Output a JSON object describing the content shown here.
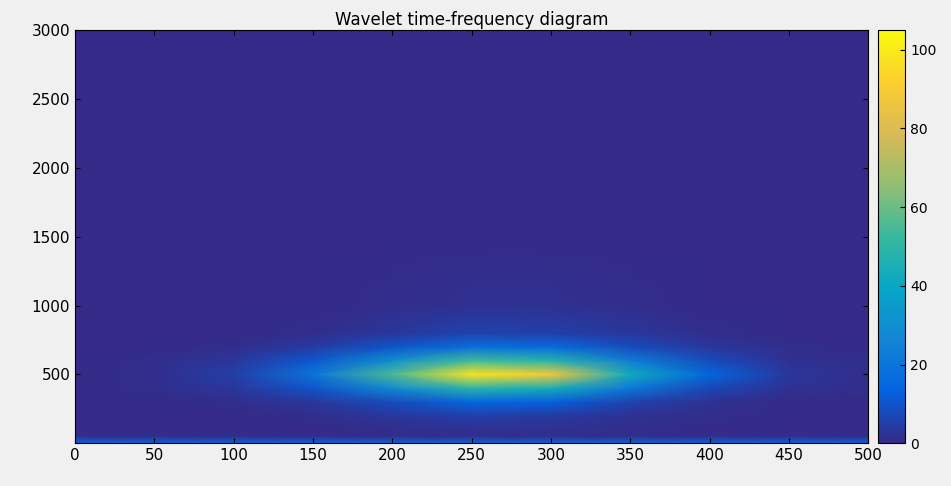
{
  "chart_data": {
    "type": "heatmap",
    "title": "Wavelet time-frequency diagram",
    "x": [
      0,
      50,
      100,
      150,
      200,
      250,
      300,
      350,
      400,
      450,
      500
    ],
    "y": [
      0,
      50,
      100,
      200,
      300,
      400,
      500,
      600,
      700,
      800,
      1000,
      1500,
      2000,
      2500,
      3000
    ],
    "cells": [
      [
        15,
        15,
        15,
        15,
        15,
        15,
        15,
        15,
        15,
        15,
        15
      ],
      [
        1,
        1,
        1,
        1,
        1,
        1,
        1,
        1,
        1,
        1,
        1
      ],
      [
        0,
        0,
        0,
        0,
        1,
        2,
        2,
        1,
        0,
        0,
        0
      ],
      [
        0,
        0,
        0,
        1,
        3,
        5,
        4,
        2,
        1,
        0,
        0
      ],
      [
        0,
        0,
        1,
        3,
        8,
        15,
        13,
        6,
        2,
        0,
        0
      ],
      [
        0,
        1,
        3,
        10,
        28,
        49,
        44,
        21,
        7,
        2,
        1
      ],
      [
        0,
        1,
        5,
        20,
        55,
        98,
        88,
        42,
        14,
        3,
        1
      ],
      [
        0,
        1,
        3,
        11,
        30,
        54,
        48,
        23,
        8,
        2,
        1
      ],
      [
        0,
        0,
        1,
        4,
        10,
        18,
        16,
        8,
        3,
        1,
        0
      ],
      [
        0,
        0,
        0,
        1,
        3,
        6,
        5,
        3,
        1,
        0,
        0
      ],
      [
        0,
        0,
        0,
        0,
        1,
        2,
        2,
        1,
        0,
        0,
        0
      ],
      [
        0,
        0,
        0,
        0,
        0,
        0,
        0,
        0,
        0,
        0,
        0
      ],
      [
        0,
        0,
        0,
        0,
        0,
        0,
        0,
        0,
        0,
        0,
        0
      ],
      [
        0,
        0,
        0,
        0,
        0,
        0,
        0,
        0,
        0,
        0,
        0
      ],
      [
        0,
        0,
        0,
        0,
        0,
        0,
        0,
        0,
        0,
        0,
        0
      ]
    ],
    "xlim": [
      0,
      500
    ],
    "xticks": [
      0,
      50,
      100,
      150,
      200,
      250,
      300,
      350,
      400,
      450,
      500
    ],
    "ylim": [
      0,
      3000
    ],
    "yticks": [
      500,
      1000,
      1500,
      2000,
      2500,
      3000
    ],
    "colorbar_range": [
      0,
      105
    ],
    "colorbar_ticks": [
      0,
      20,
      40,
      60,
      80,
      100
    ]
  }
}
